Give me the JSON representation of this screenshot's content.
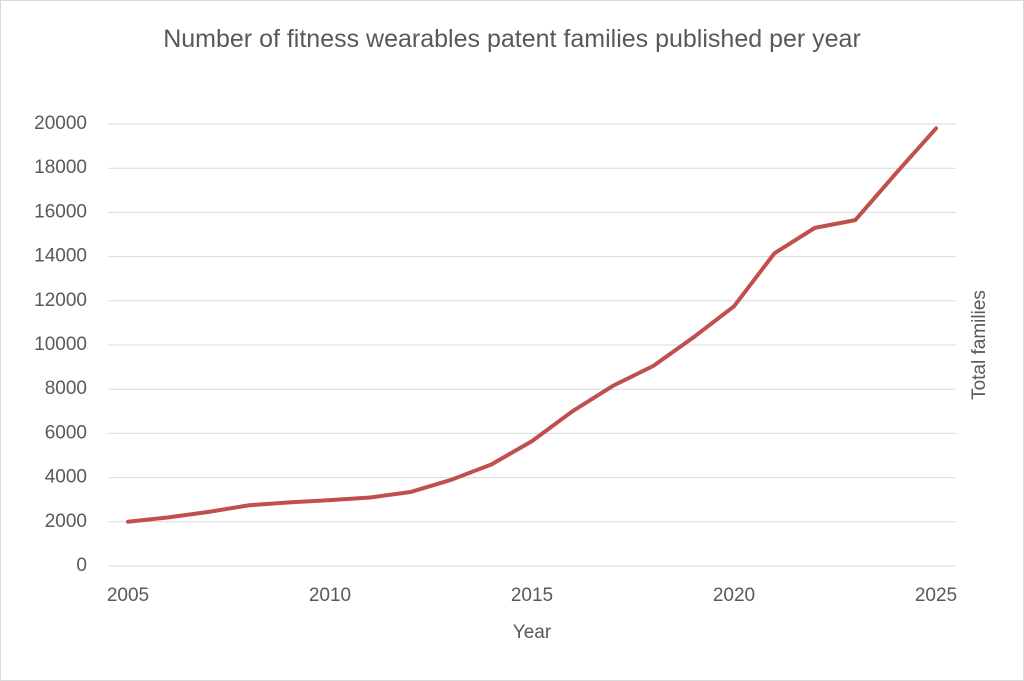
{
  "chart_data": {
    "type": "line",
    "title": "Number of fitness wearables patent families published per year",
    "x_label": "Year",
    "y_label": "Total families",
    "x": [
      2005,
      2006,
      2007,
      2008,
      2009,
      2010,
      2011,
      2012,
      2013,
      2014,
      2015,
      2016,
      2017,
      2018,
      2019,
      2020,
      2021,
      2022,
      2023,
      2024,
      2025
    ],
    "series": [
      {
        "name": "Total families",
        "color": "#c0504d",
        "values": [
          2000,
          2200,
          2450,
          2750,
          2880,
          2980,
          3100,
          3350,
          3900,
          4600,
          5650,
          7000,
          8150,
          9050,
          10350,
          11750,
          14150,
          15300,
          15650,
          17750,
          19800
        ]
      }
    ],
    "xlim": [
      2005,
      2025
    ],
    "xticks": [
      2005,
      2010,
      2015,
      2020,
      2025
    ],
    "ylim": [
      0,
      20000
    ],
    "yticks": [
      0,
      2000,
      4000,
      6000,
      8000,
      10000,
      12000,
      14000,
      16000,
      18000,
      20000
    ],
    "grid": true
  }
}
